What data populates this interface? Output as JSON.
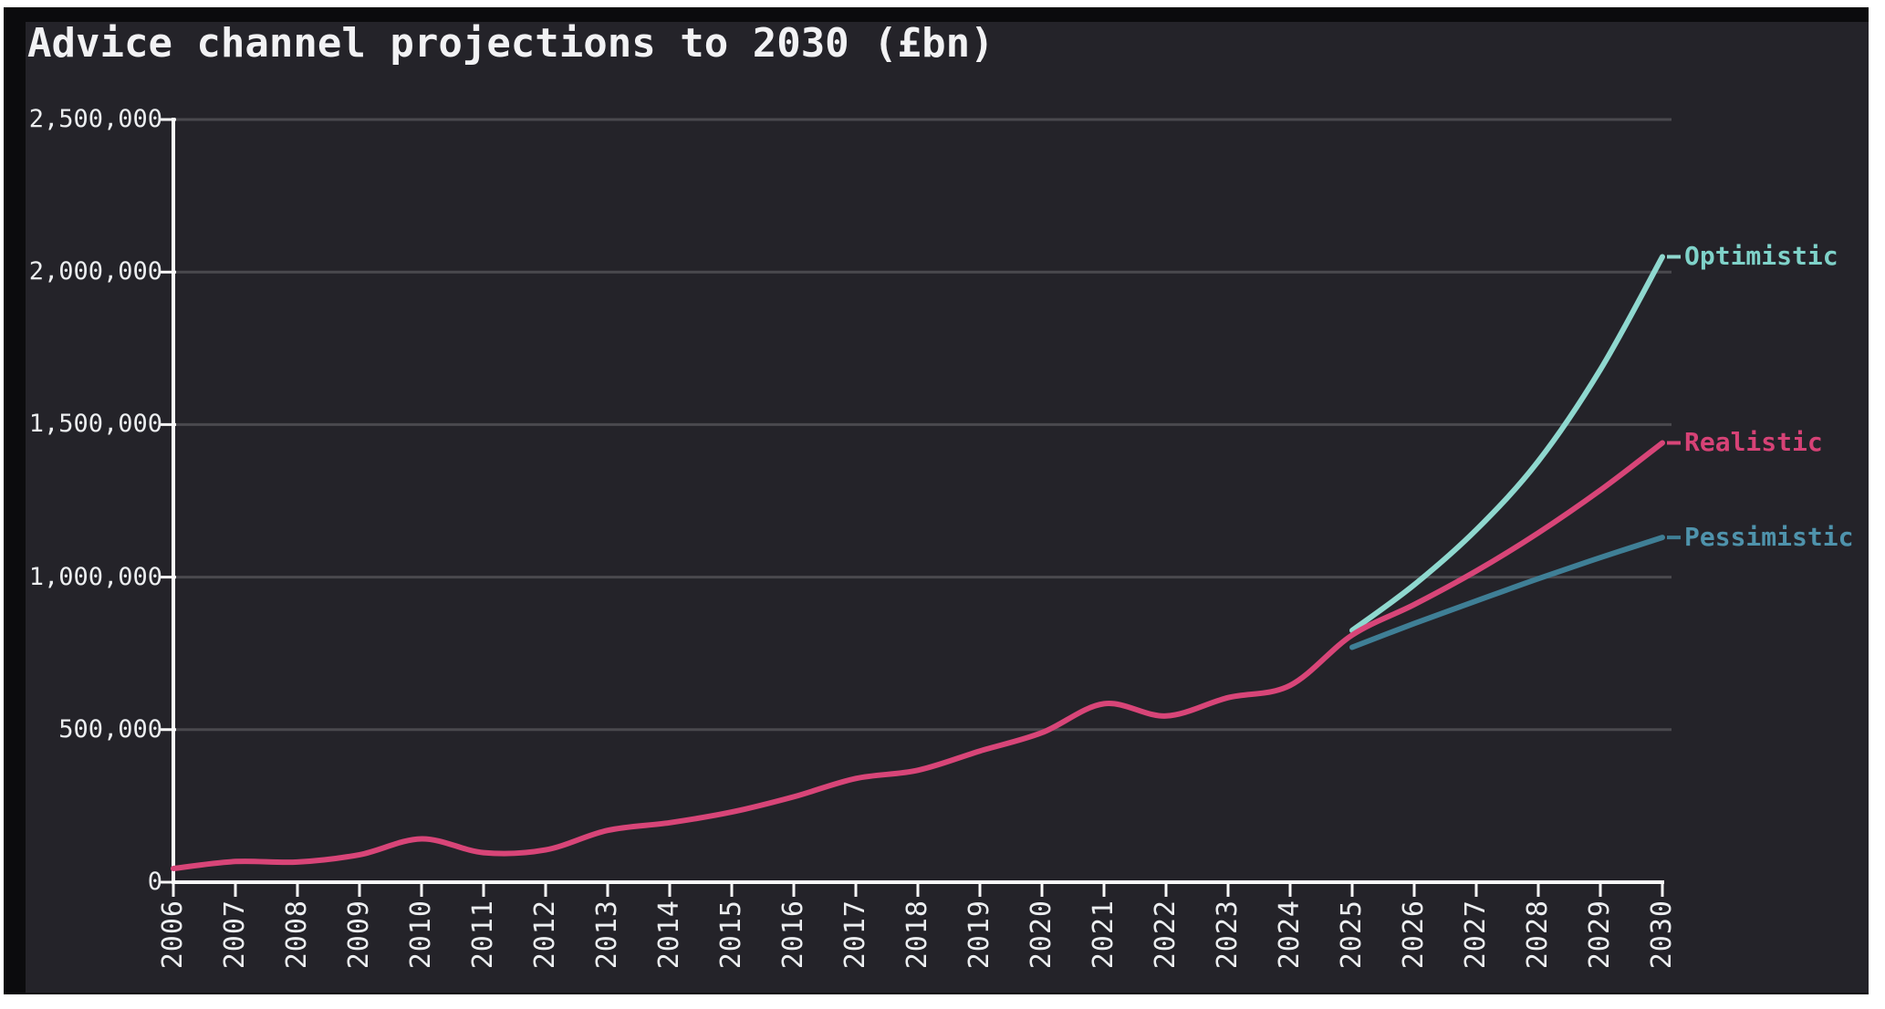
{
  "title": "Advice channel projections to 2030 (£bn)",
  "theme": {
    "page_background": "#ffffff",
    "frame_color": "#0b0b0d",
    "panel_background": "#242329",
    "grid_color": "#4a494e",
    "axis_color": "#fafafa",
    "tick_label_color": "#eceef0",
    "title_color": "#f2f2f4"
  },
  "chart_data": {
    "type": "line",
    "title": "Advice channel projections to 2030 (£bn)",
    "grid": "horizontal",
    "legend_position": "end-of-line-labels",
    "x_range": [
      2006,
      2030
    ],
    "y_range": [
      0,
      2500000
    ],
    "x_ticks": [
      "2006",
      "2007",
      "2008",
      "2009",
      "2010",
      "2011",
      "2012",
      "2013",
      "2014",
      "2015",
      "2016",
      "2017",
      "2018",
      "2019",
      "2020",
      "2021",
      "2022",
      "2023",
      "2024",
      "2025",
      "2026",
      "2027",
      "2028",
      "2029",
      "2030"
    ],
    "y_ticks": [
      {
        "value": 0,
        "label": "0"
      },
      {
        "value": 500000,
        "label": "500,000"
      },
      {
        "value": 1000000,
        "label": "1,000,000"
      },
      {
        "value": 1500000,
        "label": "1,500,000"
      },
      {
        "value": 2000000,
        "label": "2,000,000"
      },
      {
        "value": 2500000,
        "label": "2,500,000"
      }
    ],
    "series": [
      {
        "name": "Realistic",
        "color": "#d84578",
        "label_color": "#d64276",
        "start_year": 2006,
        "values": [
          45000,
          68000,
          66000,
          90000,
          142000,
          97000,
          106000,
          170000,
          195000,
          230000,
          280000,
          340000,
          367000,
          430000,
          490000,
          585000,
          545000,
          605000,
          645000,
          810000,
          910000,
          1020000,
          1145000,
          1285000,
          1440000
        ]
      },
      {
        "name": "Optimistic",
        "color": "#8fd8cf",
        "label_color": "#7fd2c9",
        "start_year": 2025,
        "values": [
          825000,
          975000,
          1155000,
          1380000,
          1680000,
          2050000
        ]
      },
      {
        "name": "Pessimistic",
        "color": "#3f7f96",
        "label_color": "#4f93ac",
        "start_year": 2025,
        "values": [
          770000,
          848000,
          922000,
          995000,
          1064000,
          1130000
        ]
      }
    ]
  }
}
